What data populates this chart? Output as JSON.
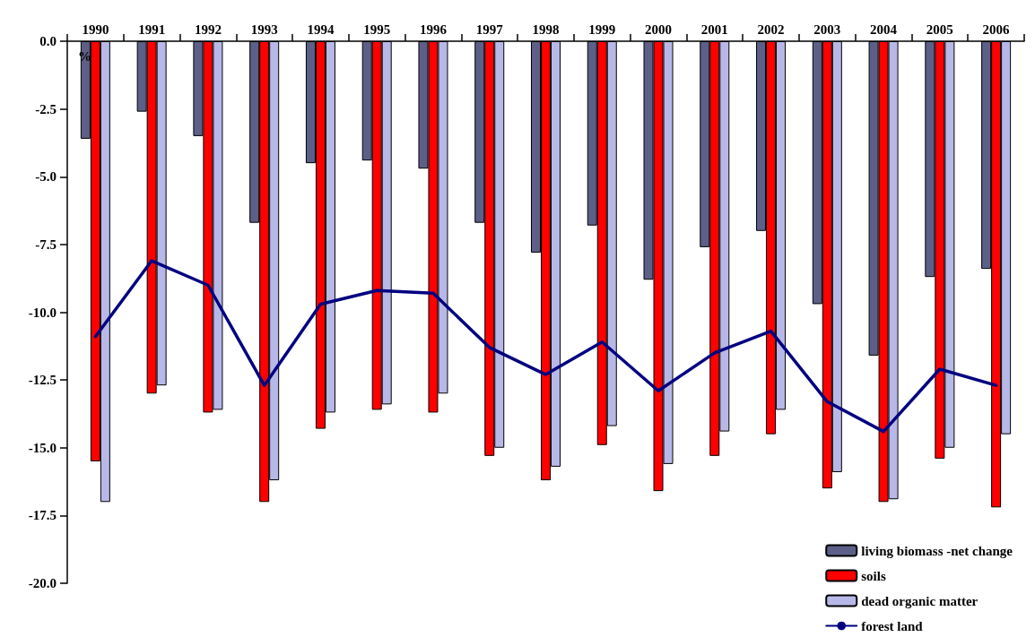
{
  "chart_data": {
    "type": "bar",
    "ylabel": "%",
    "categories": [
      "1990",
      "1991",
      "1992",
      "1993",
      "1994",
      "1995",
      "1996",
      "1997",
      "1998",
      "1999",
      "2000",
      "2001",
      "2002",
      "2003",
      "2004",
      "2005",
      "2006"
    ],
    "series": [
      {
        "name": "living biomass -net change",
        "color": "#5c6088",
        "values": [
          -3.6,
          -2.6,
          -3.5,
          -6.7,
          -4.5,
          -4.4,
          -4.7,
          -6.7,
          -7.8,
          -6.8,
          -8.8,
          -7.6,
          -7.0,
          -9.7,
          -11.6,
          -8.7,
          -8.4
        ]
      },
      {
        "name": "soils",
        "color": "#ff0000",
        "values": [
          -15.5,
          -13.0,
          -13.7,
          -17.0,
          -14.3,
          -13.6,
          -13.7,
          -15.3,
          -16.2,
          -14.9,
          -16.6,
          -15.3,
          -14.5,
          -16.5,
          -17.0,
          -15.4,
          -17.2
        ]
      },
      {
        "name": "dead organic matter",
        "color": "#b8b8e8",
        "values": [
          -17.0,
          -12.7,
          -13.6,
          -16.2,
          -13.7,
          -13.4,
          -13.0,
          -15.0,
          -15.7,
          -14.2,
          -15.6,
          -14.4,
          -13.6,
          -15.9,
          -16.9,
          -15.0,
          -14.5
        ]
      },
      {
        "name": "forest land",
        "type": "line",
        "color": "#000080",
        "values": [
          -10.9,
          -8.1,
          -9.0,
          -12.7,
          -9.7,
          -9.2,
          -9.3,
          -11.3,
          -12.3,
          -11.1,
          -12.9,
          -11.5,
          -10.7,
          -13.3,
          -14.4,
          -12.1,
          -12.7
        ]
      }
    ],
    "ylim": [
      -20,
      0
    ],
    "yticks": [
      {
        "value": 0,
        "label": "0.0"
      },
      {
        "value": -2.5,
        "label": "-2.5"
      },
      {
        "value": -5,
        "label": "-5.0"
      },
      {
        "value": -7.5,
        "label": "-7.5"
      },
      {
        "value": -10,
        "label": "-10.0"
      },
      {
        "value": -12.5,
        "label": "-12.5"
      },
      {
        "value": -15,
        "label": "-15.0"
      },
      {
        "value": -17.5,
        "label": "-17.5"
      },
      {
        "value": -20,
        "label": "-20.0"
      }
    ],
    "grid": false,
    "legend": "bottom right",
    "marker": "none",
    "line_style": "solid"
  }
}
